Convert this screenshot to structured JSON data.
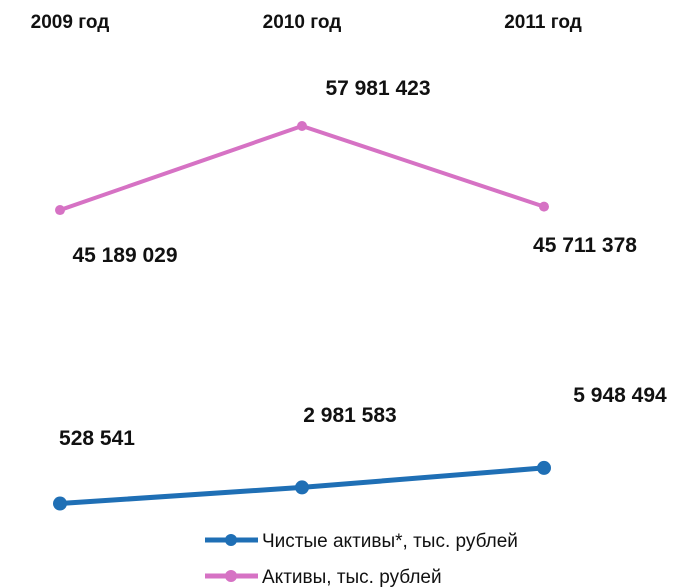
{
  "chart_data": {
    "type": "line",
    "categories": [
      "2009 год",
      "2010 год",
      "2011 год"
    ],
    "series": [
      {
        "name": "Чистые активы*, тыс. рублей",
        "color": "#1f6fb5",
        "values": [
          528541,
          2981583,
          5948494
        ],
        "value_labels": [
          "528 541",
          "2 981 583",
          "5 948 494"
        ]
      },
      {
        "name": "Активы, тыс. рублей",
        "color": "#d672c4",
        "values": [
          45189029,
          57981423,
          45711378
        ],
        "value_labels": [
          "45 189 029",
          "57 981 423",
          "45 711 378"
        ]
      }
    ]
  }
}
